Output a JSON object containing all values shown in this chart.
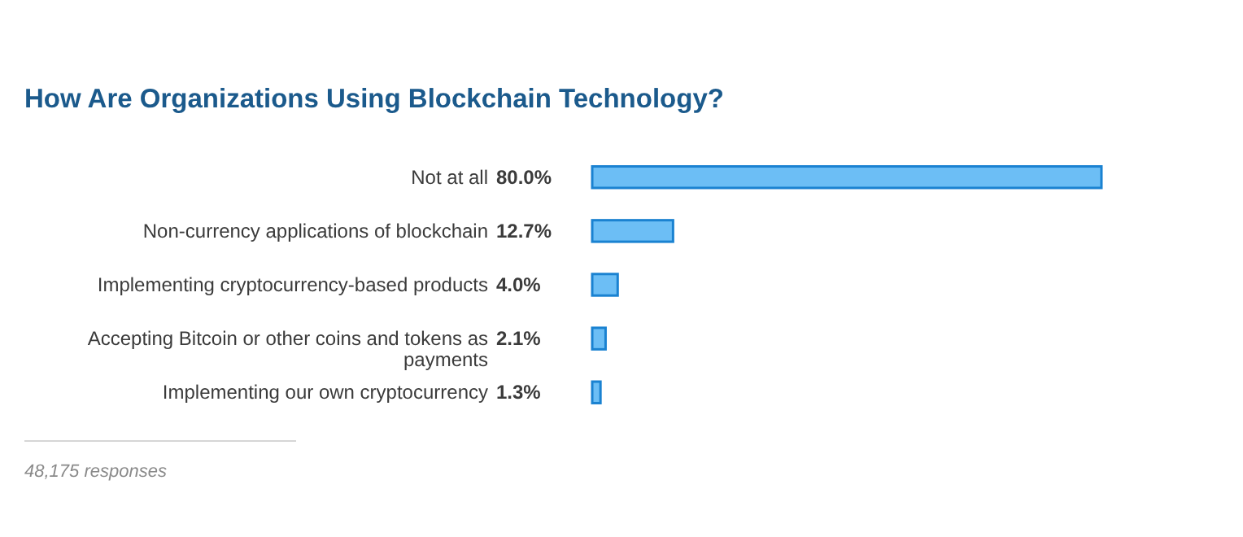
{
  "chart_data": {
    "type": "bar",
    "orientation": "horizontal",
    "title": "How Are Organizations Using Blockchain Technology?",
    "categories": [
      "Not at all",
      "Non-currency applications of blockchain",
      "Implementing cryptocurrency-based products",
      "Accepting Bitcoin or other coins and tokens as payments",
      "Implementing our own cryptocurrency"
    ],
    "values": [
      80.0,
      12.7,
      4.0,
      2.1,
      1.3
    ],
    "value_labels": [
      "80.0%",
      "12.7%",
      "4.0%",
      "2.1%",
      "1.3%"
    ],
    "color": "#6cbef5",
    "annotations": [
      "48,175 responses"
    ]
  }
}
